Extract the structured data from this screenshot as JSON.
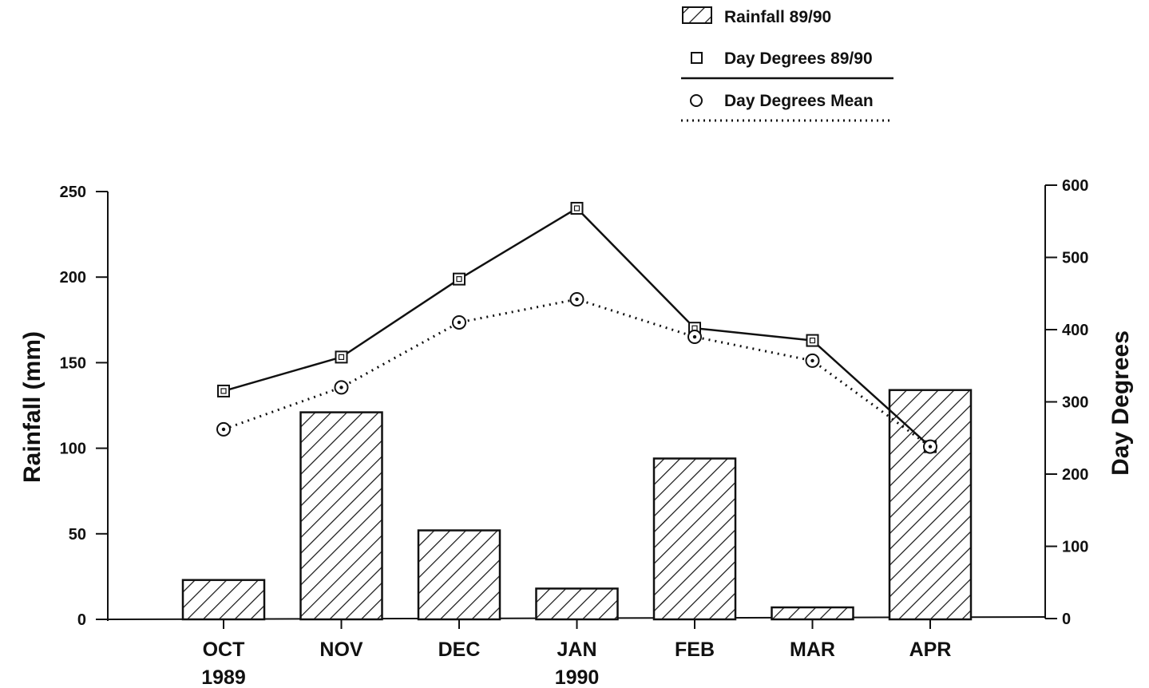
{
  "chart_data": {
    "type": "bar",
    "categories": [
      "OCT",
      "NOV",
      "DEC",
      "JAN",
      "FEB",
      "MAR",
      "APR"
    ],
    "category_sublabels": [
      "1989",
      "",
      "",
      "1990",
      "",
      "",
      ""
    ],
    "bar_series": {
      "name": "Rainfall 89/90",
      "values": [
        23,
        121,
        52,
        18,
        94,
        7,
        134
      ],
      "axis": "left"
    },
    "line_series": [
      {
        "name": "Day Degrees 89/90",
        "values": [
          315,
          362,
          470,
          568,
          402,
          385,
          238
        ],
        "axis": "right",
        "marker": "square",
        "line_style": "solid"
      },
      {
        "name": "Day Degrees Mean",
        "values": [
          262,
          320,
          410,
          442,
          390,
          357,
          238
        ],
        "axis": "right",
        "marker": "circle",
        "line_style": "dotted"
      }
    ],
    "ylabel_left": "Rainfall (mm)",
    "ylabel_right": "Day Degrees",
    "ylim_left": [
      0,
      250
    ],
    "ylim_right": [
      0,
      600
    ],
    "yticks_left": [
      "0",
      "50",
      "100",
      "150",
      "200",
      "250"
    ],
    "yticks_right": [
      "0",
      "100",
      "200",
      "300",
      "400",
      "500",
      "600"
    ],
    "grid": false,
    "legend_position": "top-right",
    "colors": {
      "ink": "#111111",
      "background": "#ffffff"
    }
  }
}
